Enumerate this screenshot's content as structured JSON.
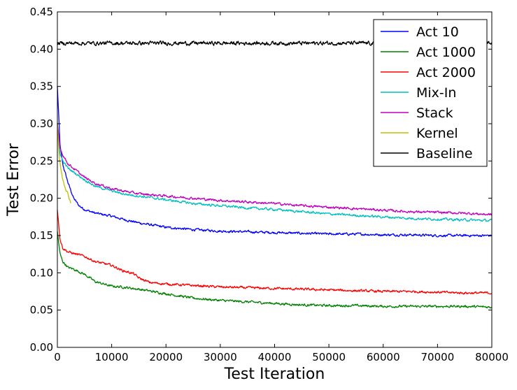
{
  "chart_data": {
    "type": "line",
    "title": "",
    "xlabel": "Test Iteration",
    "ylabel": "Test Error",
    "xlim": [
      0,
      80000
    ],
    "ylim": [
      0.0,
      0.45
    ],
    "xticks": [
      0,
      10000,
      20000,
      30000,
      40000,
      50000,
      60000,
      70000,
      80000
    ],
    "xtick_labels": [
      "0",
      "10000",
      "20000",
      "30000",
      "40000",
      "50000",
      "60000",
      "70000",
      "80000"
    ],
    "yticks": [
      0.0,
      0.05,
      0.1,
      0.15,
      0.2,
      0.25,
      0.3,
      0.35,
      0.4,
      0.45
    ],
    "ytick_labels": [
      "0.00",
      "0.05",
      "0.10",
      "0.15",
      "0.20",
      "0.25",
      "0.30",
      "0.35",
      "0.40",
      "0.45"
    ],
    "grid": false,
    "legend_position": "top-right",
    "series": [
      {
        "name": "Act 10",
        "color": "#0000ff",
        "x": [
          0,
          500,
          1000,
          2000,
          3000,
          4000,
          5000,
          7000,
          10000,
          12000,
          15000,
          20000,
          25000,
          30000,
          35000,
          40000,
          45000,
          50000,
          55000,
          60000,
          65000,
          70000,
          75000,
          80000
        ],
        "y": [
          0.35,
          0.27,
          0.245,
          0.22,
          0.2,
          0.19,
          0.185,
          0.18,
          0.176,
          0.172,
          0.167,
          0.161,
          0.158,
          0.156,
          0.155,
          0.154,
          0.153,
          0.152,
          0.152,
          0.151,
          0.151,
          0.15,
          0.15,
          0.15
        ]
      },
      {
        "name": "Act 1000",
        "color": "#008000",
        "x": [
          0,
          500,
          1000,
          2000,
          3000,
          5000,
          7000,
          10000,
          12000,
          15000,
          20000,
          25000,
          30000,
          35000,
          40000,
          45000,
          50000,
          55000,
          60000,
          65000,
          70000,
          75000,
          80000
        ],
        "y": [
          0.155,
          0.125,
          0.115,
          0.107,
          0.105,
          0.098,
          0.088,
          0.082,
          0.081,
          0.078,
          0.072,
          0.066,
          0.063,
          0.061,
          0.059,
          0.057,
          0.056,
          0.056,
          0.055,
          0.055,
          0.055,
          0.055,
          0.054
        ]
      },
      {
        "name": "Act 2000",
        "color": "#ff0000",
        "x": [
          0,
          500,
          1000,
          2000,
          3000,
          5000,
          7000,
          10000,
          12000,
          14000,
          15000,
          17000,
          20000,
          25000,
          30000,
          35000,
          40000,
          45000,
          50000,
          55000,
          60000,
          65000,
          70000,
          75000,
          80000
        ],
        "y": [
          0.185,
          0.145,
          0.133,
          0.128,
          0.126,
          0.122,
          0.115,
          0.11,
          0.103,
          0.099,
          0.093,
          0.087,
          0.085,
          0.083,
          0.081,
          0.08,
          0.079,
          0.078,
          0.077,
          0.076,
          0.075,
          0.075,
          0.074,
          0.073,
          0.073
        ]
      },
      {
        "name": "Mix-In",
        "color": "#00bfbf",
        "x": [
          0,
          500,
          1000,
          2000,
          3000,
          5000,
          7000,
          10000,
          12000,
          15000,
          20000,
          25000,
          30000,
          35000,
          40000,
          45000,
          50000,
          55000,
          60000,
          65000,
          70000,
          75000,
          80000
        ],
        "y": [
          0.29,
          0.26,
          0.25,
          0.24,
          0.235,
          0.225,
          0.216,
          0.21,
          0.206,
          0.203,
          0.198,
          0.193,
          0.19,
          0.187,
          0.185,
          0.182,
          0.179,
          0.177,
          0.175,
          0.173,
          0.172,
          0.171,
          0.17
        ]
      },
      {
        "name": "Stack",
        "color": "#bf00bf",
        "x": [
          0,
          500,
          1000,
          2000,
          3000,
          5000,
          7000,
          10000,
          12000,
          15000,
          20000,
          25000,
          30000,
          35000,
          40000,
          45000,
          50000,
          55000,
          60000,
          65000,
          70000,
          75000,
          80000
        ],
        "y": [
          0.3,
          0.268,
          0.258,
          0.246,
          0.24,
          0.228,
          0.22,
          0.213,
          0.21,
          0.206,
          0.203,
          0.2,
          0.197,
          0.195,
          0.193,
          0.19,
          0.188,
          0.186,
          0.184,
          0.182,
          0.181,
          0.18,
          0.178
        ]
      },
      {
        "name": "Kernel",
        "color": "#bfbf00",
        "x": [
          0,
          300,
          600,
          1000,
          1500,
          2000,
          2500
        ],
        "y": [
          0.3,
          0.26,
          0.24,
          0.225,
          0.213,
          0.205,
          0.192
        ]
      },
      {
        "name": "Baseline",
        "color": "#000000",
        "x": [
          0,
          80000
        ],
        "y": [
          0.408,
          0.408
        ]
      }
    ]
  }
}
